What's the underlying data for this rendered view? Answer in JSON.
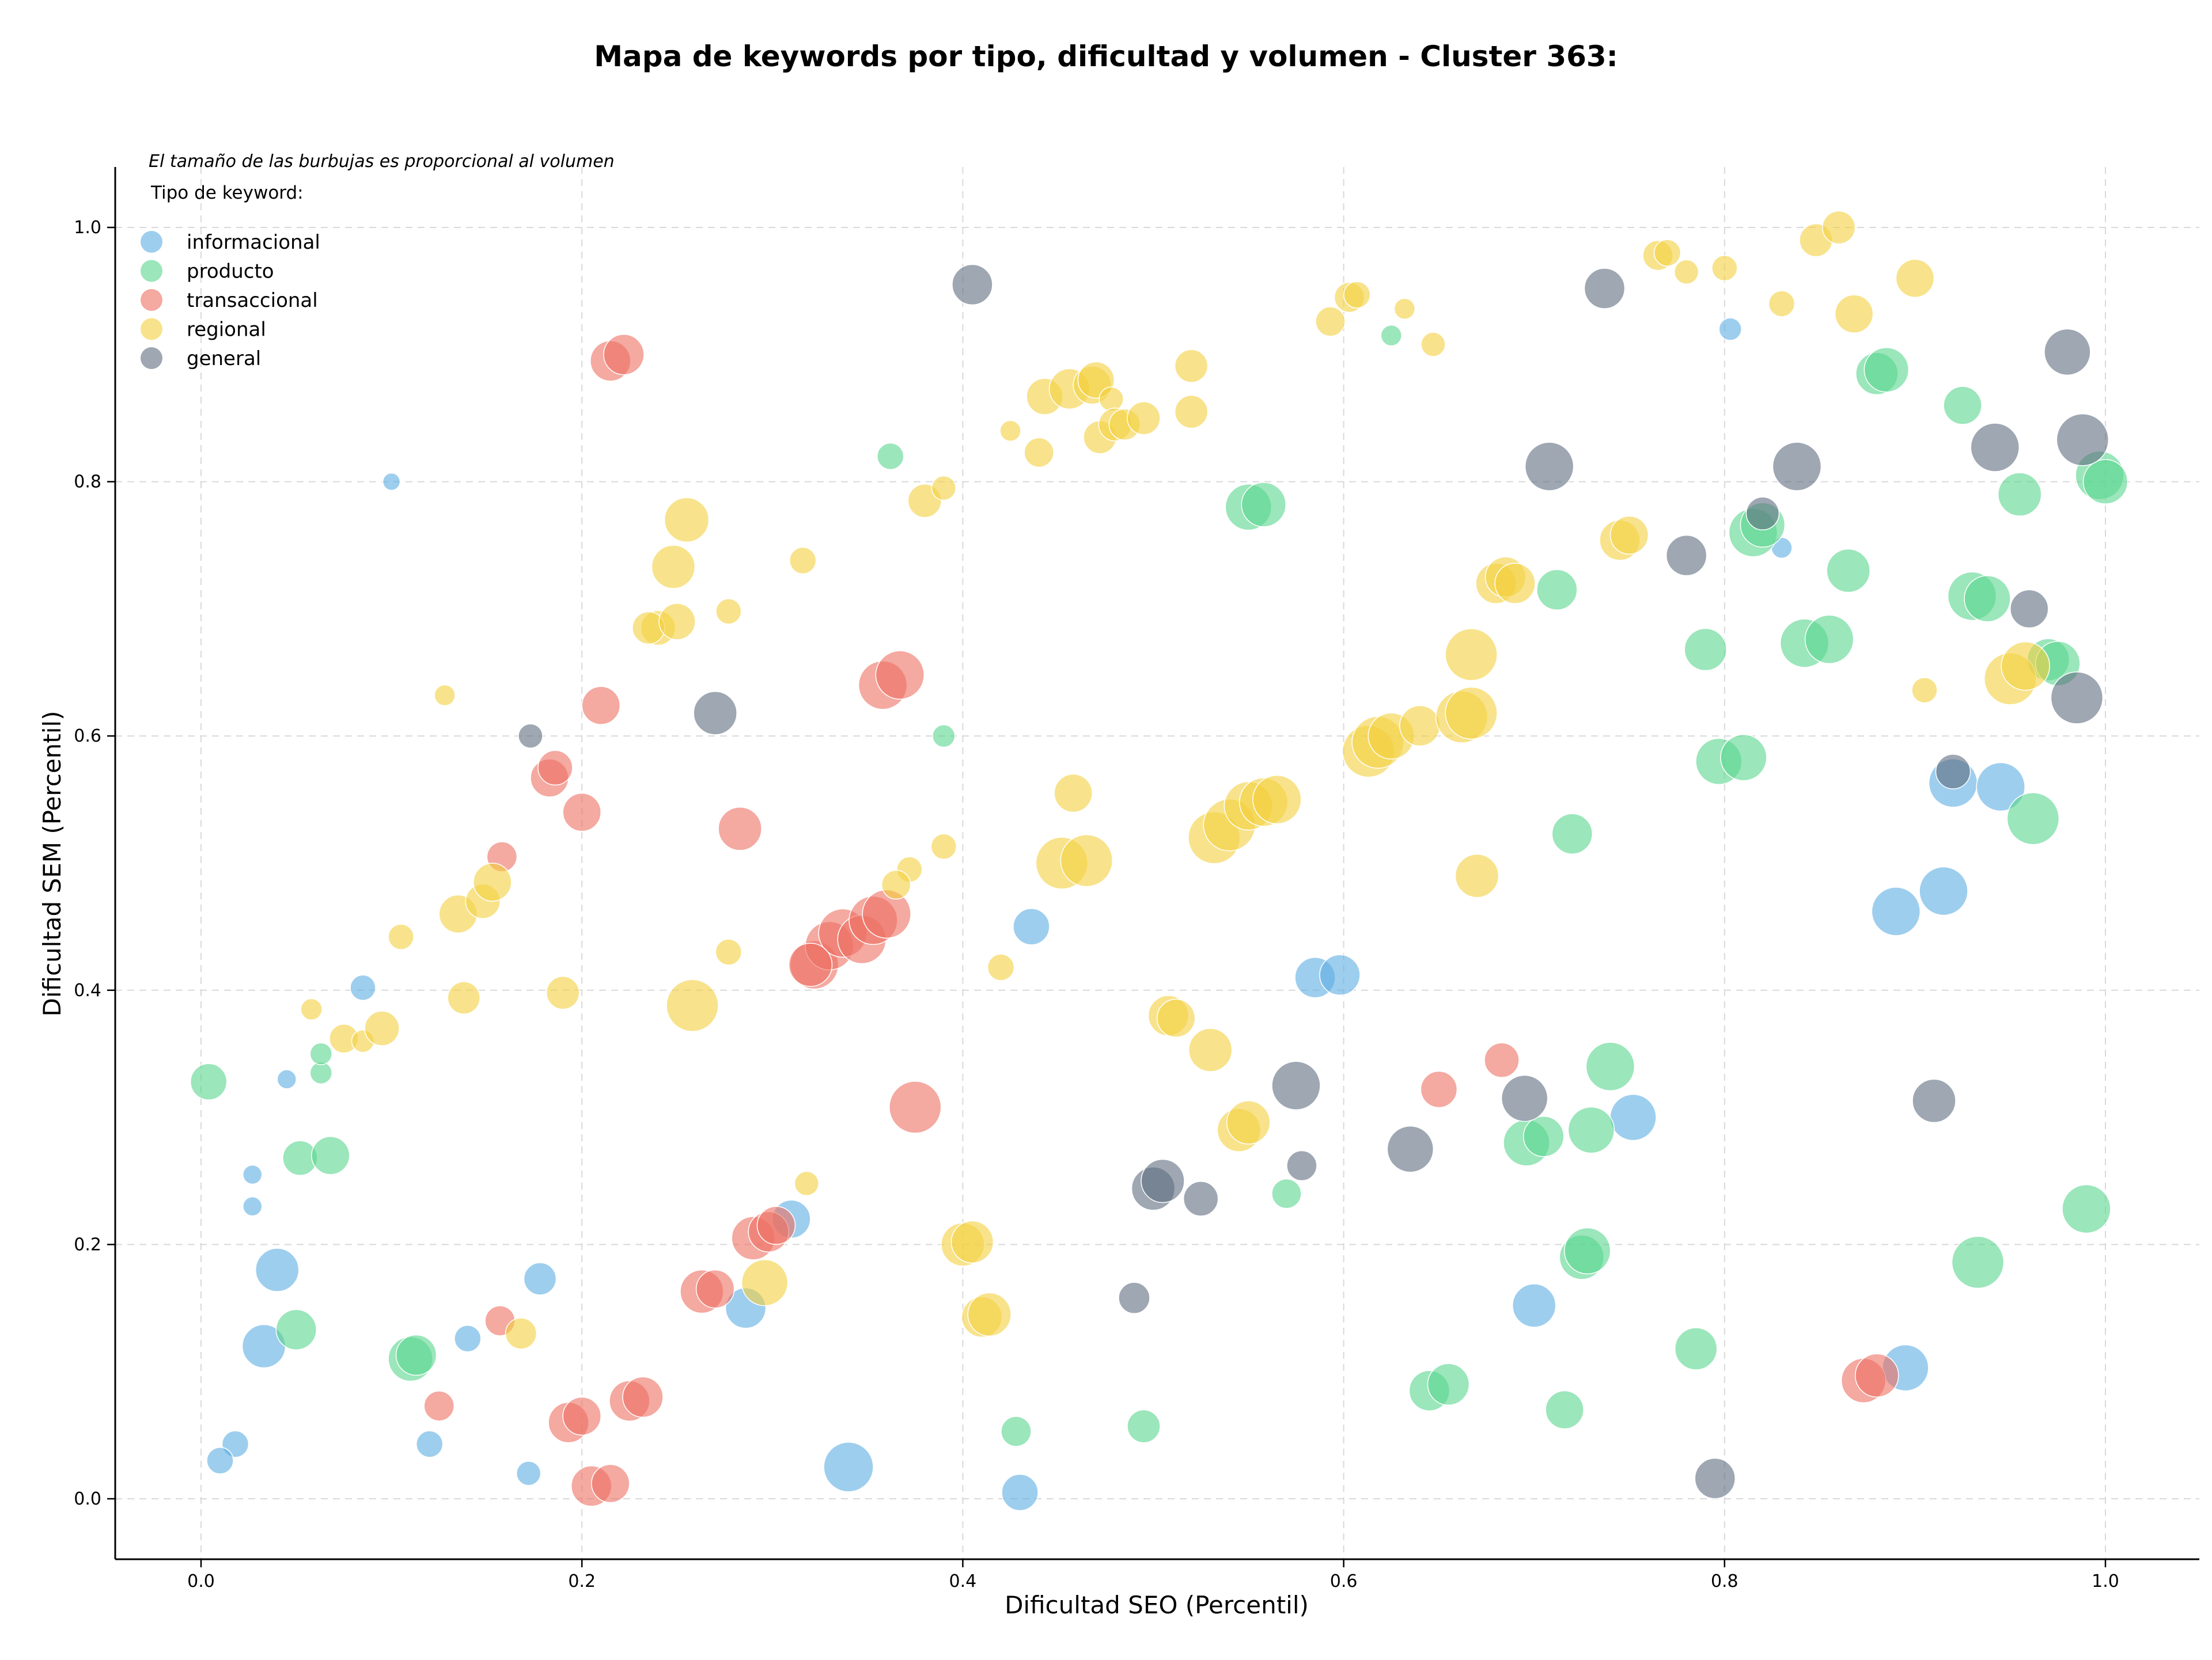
{
  "chart_data": {
    "type": "scatter",
    "title": "Mapa de keywords por tipo, dificultad y volumen - Cluster 363:",
    "xlabel": "Dificultad SEO (Percentil)",
    "ylabel": "Dificultad SEM (Percentil)",
    "xlim": [
      -0.045,
      1.05
    ],
    "ylim": [
      -0.045,
      1.05
    ],
    "xticks": [
      "0.0",
      "0.2",
      "0.4",
      "0.6",
      "0.8",
      "1.0"
    ],
    "yticks": [
      "0.0",
      "0.2",
      "0.4",
      "0.6",
      "0.8",
      "1.0"
    ],
    "grid": true,
    "size_note": "El tamaño de las burbujas es proporcional al volumen",
    "legend": {
      "title": "Tipo de keyword:",
      "placement": "top-left"
    },
    "series": [
      {
        "name": "informacional",
        "color": "#5DADE2",
        "points": [
          [
            0.1,
            0.8,
            30
          ],
          [
            0.045,
            0.33,
            33
          ],
          [
            0.027,
            0.255,
            33
          ],
          [
            0.027,
            0.23,
            33
          ],
          [
            0.085,
            0.402,
            44
          ],
          [
            0.04,
            0.18,
            75
          ],
          [
            0.033,
            0.12,
            75
          ],
          [
            0.018,
            0.043,
            46
          ],
          [
            0.01,
            0.03,
            46
          ],
          [
            0.12,
            0.043,
            46
          ],
          [
            0.14,
            0.126,
            46
          ],
          [
            0.178,
            0.173,
            56
          ],
          [
            0.172,
            0.02,
            42
          ],
          [
            0.31,
            0.22,
            66
          ],
          [
            0.286,
            0.15,
            70
          ],
          [
            0.34,
            0.025,
            86
          ],
          [
            0.43,
            0.005,
            63
          ],
          [
            0.436,
            0.45,
            63
          ],
          [
            0.585,
            0.41,
            70
          ],
          [
            0.598,
            0.412,
            70
          ],
          [
            0.7,
            0.152,
            75
          ],
          [
            0.752,
            0.3,
            80
          ],
          [
            0.803,
            0.92,
            39
          ],
          [
            0.83,
            0.748,
            36
          ],
          [
            0.89,
            0.462,
            84
          ],
          [
            0.915,
            0.478,
            84
          ],
          [
            0.92,
            0.563,
            84
          ],
          [
            0.945,
            0.56,
            84
          ],
          [
            0.895,
            0.103,
            80
          ]
        ]
      },
      {
        "name": "producto",
        "color": "#58D68D",
        "points": [
          [
            0.004,
            0.328,
            63
          ],
          [
            0.063,
            0.335,
            38
          ],
          [
            0.063,
            0.35,
            38
          ],
          [
            0.052,
            0.268,
            60
          ],
          [
            0.068,
            0.27,
            66
          ],
          [
            0.05,
            0.133,
            70
          ],
          [
            0.11,
            0.11,
            77
          ],
          [
            0.113,
            0.113,
            70
          ],
          [
            0.362,
            0.82,
            46
          ],
          [
            0.39,
            0.6,
            39
          ],
          [
            0.428,
            0.053,
            52
          ],
          [
            0.495,
            0.057,
            57
          ],
          [
            0.55,
            0.78,
            80
          ],
          [
            0.558,
            0.782,
            77
          ],
          [
            0.57,
            0.24,
            51
          ],
          [
            0.625,
            0.915,
            36
          ],
          [
            0.645,
            0.085,
            70
          ],
          [
            0.655,
            0.09,
            72
          ],
          [
            0.696,
            0.28,
            80
          ],
          [
            0.705,
            0.285,
            70
          ],
          [
            0.712,
            0.715,
            70
          ],
          [
            0.716,
            0.07,
            66
          ],
          [
            0.72,
            0.523,
            70
          ],
          [
            0.725,
            0.19,
            77
          ],
          [
            0.728,
            0.195,
            80
          ],
          [
            0.73,
            0.29,
            80
          ],
          [
            0.74,
            0.34,
            84
          ],
          [
            0.785,
            0.118,
            73
          ],
          [
            0.79,
            0.668,
            73
          ],
          [
            0.797,
            0.58,
            80
          ],
          [
            0.81,
            0.583,
            80
          ],
          [
            0.815,
            0.76,
            84
          ],
          [
            0.82,
            0.766,
            77
          ],
          [
            0.842,
            0.673,
            84
          ],
          [
            0.855,
            0.676,
            84
          ],
          [
            0.865,
            0.73,
            75
          ],
          [
            0.88,
            0.885,
            73
          ],
          [
            0.885,
            0.888,
            77
          ],
          [
            0.925,
            0.86,
            66
          ],
          [
            0.93,
            0.71,
            84
          ],
          [
            0.938,
            0.708,
            80
          ],
          [
            0.933,
            0.186,
            90
          ],
          [
            0.955,
            0.79,
            75
          ],
          [
            0.962,
            0.535,
            90
          ],
          [
            0.97,
            0.66,
            73
          ],
          [
            0.975,
            0.657,
            77
          ],
          [
            0.99,
            0.228,
            84
          ],
          [
            0.997,
            0.805,
            84
          ],
          [
            1.0,
            0.8,
            77
          ]
        ]
      },
      {
        "name": "transaccional",
        "color": "#EC7063",
        "points": [
          [
            0.215,
            0.895,
            70
          ],
          [
            0.222,
            0.9,
            70
          ],
          [
            0.21,
            0.624,
            66
          ],
          [
            0.183,
            0.567,
            66
          ],
          [
            0.186,
            0.575,
            60
          ],
          [
            0.158,
            0.505,
            52
          ],
          [
            0.2,
            0.54,
            66
          ],
          [
            0.283,
            0.527,
            75
          ],
          [
            0.358,
            0.64,
            84
          ],
          [
            0.367,
            0.648,
            84
          ],
          [
            0.375,
            0.308,
            90
          ],
          [
            0.322,
            0.42,
            84
          ],
          [
            0.33,
            0.435,
            84
          ],
          [
            0.337,
            0.445,
            84
          ],
          [
            0.347,
            0.44,
            84
          ],
          [
            0.353,
            0.455,
            84
          ],
          [
            0.36,
            0.46,
            84
          ],
          [
            0.32,
            0.42,
            75
          ],
          [
            0.29,
            0.205,
            75
          ],
          [
            0.298,
            0.21,
            70
          ],
          [
            0.302,
            0.215,
            66
          ],
          [
            0.263,
            0.163,
            75
          ],
          [
            0.27,
            0.165,
            66
          ],
          [
            0.193,
            0.06,
            70
          ],
          [
            0.2,
            0.065,
            66
          ],
          [
            0.205,
            0.01,
            70
          ],
          [
            0.215,
            0.012,
            66
          ],
          [
            0.225,
            0.077,
            70
          ],
          [
            0.232,
            0.08,
            70
          ],
          [
            0.157,
            0.14,
            52
          ],
          [
            0.125,
            0.073,
            52
          ],
          [
            0.65,
            0.322,
            63
          ],
          [
            0.683,
            0.345,
            60
          ],
          [
            0.873,
            0.093,
            77
          ],
          [
            0.88,
            0.097,
            75
          ]
        ]
      },
      {
        "name": "regional",
        "color": "#F4D03F",
        "points": [
          [
            0.058,
            0.385,
            37
          ],
          [
            0.075,
            0.362,
            50
          ],
          [
            0.085,
            0.36,
            39
          ],
          [
            0.095,
            0.37,
            60
          ],
          [
            0.105,
            0.442,
            44
          ],
          [
            0.128,
            0.632,
            36
          ],
          [
            0.135,
            0.46,
            66
          ],
          [
            0.138,
            0.394,
            56
          ],
          [
            0.148,
            0.47,
            60
          ],
          [
            0.153,
            0.485,
            66
          ],
          [
            0.168,
            0.13,
            54
          ],
          [
            0.19,
            0.398,
            57
          ],
          [
            0.248,
            0.733,
            75
          ],
          [
            0.255,
            0.77,
            77
          ],
          [
            0.24,
            0.685,
            60
          ],
          [
            0.235,
            0.685,
            56
          ],
          [
            0.25,
            0.69,
            63
          ],
          [
            0.258,
            0.388,
            90
          ],
          [
            0.277,
            0.698,
            44
          ],
          [
            0.277,
            0.43,
            45
          ],
          [
            0.296,
            0.17,
            80
          ],
          [
            0.316,
            0.738,
            46
          ],
          [
            0.318,
            0.248,
            42
          ],
          [
            0.372,
            0.495,
            44
          ],
          [
            0.38,
            0.785,
            58
          ],
          [
            0.39,
            0.795,
            42
          ],
          [
            0.39,
            0.513,
            44
          ],
          [
            0.365,
            0.483,
            50
          ],
          [
            0.4,
            0.2,
            75
          ],
          [
            0.405,
            0.202,
            73
          ],
          [
            0.41,
            0.143,
            70
          ],
          [
            0.414,
            0.145,
            75
          ],
          [
            0.42,
            0.418,
            46
          ],
          [
            0.425,
            0.84,
            36
          ],
          [
            0.44,
            0.823,
            51
          ],
          [
            0.443,
            0.867,
            63
          ],
          [
            0.452,
            0.5,
            90
          ],
          [
            0.456,
            0.873,
            70
          ],
          [
            0.458,
            0.555,
            66
          ],
          [
            0.465,
            0.502,
            90
          ],
          [
            0.468,
            0.876,
            66
          ],
          [
            0.47,
            0.88,
            63
          ],
          [
            0.472,
            0.835,
            57
          ],
          [
            0.478,
            0.865,
            42
          ],
          [
            0.48,
            0.845,
            57
          ],
          [
            0.485,
            0.845,
            54
          ],
          [
            0.495,
            0.85,
            57
          ],
          [
            0.508,
            0.38,
            70
          ],
          [
            0.512,
            0.378,
            66
          ],
          [
            0.52,
            0.891,
            57
          ],
          [
            0.52,
            0.855,
            57
          ],
          [
            0.53,
            0.353,
            75
          ],
          [
            0.532,
            0.52,
            90
          ],
          [
            0.54,
            0.53,
            90
          ],
          [
            0.545,
            0.29,
            75
          ],
          [
            0.55,
            0.296,
            75
          ],
          [
            0.55,
            0.545,
            84
          ],
          [
            0.558,
            0.548,
            84
          ],
          [
            0.565,
            0.55,
            84
          ],
          [
            0.593,
            0.926,
            51
          ],
          [
            0.603,
            0.945,
            52
          ],
          [
            0.607,
            0.947,
            46
          ],
          [
            0.613,
            0.588,
            90
          ],
          [
            0.618,
            0.595,
            90
          ],
          [
            0.625,
            0.6,
            80
          ],
          [
            0.632,
            0.936,
            36
          ],
          [
            0.64,
            0.608,
            70
          ],
          [
            0.647,
            0.908,
            42
          ],
          [
            0.662,
            0.615,
            90
          ],
          [
            0.667,
            0.618,
            90
          ],
          [
            0.67,
            0.49,
            75
          ],
          [
            0.667,
            0.664,
            90
          ],
          [
            0.68,
            0.72,
            70
          ],
          [
            0.685,
            0.725,
            70
          ],
          [
            0.69,
            0.72,
            70
          ],
          [
            0.745,
            0.754,
            70
          ],
          [
            0.75,
            0.758,
            66
          ],
          [
            0.765,
            0.978,
            52
          ],
          [
            0.77,
            0.98,
            46
          ],
          [
            0.78,
            0.965,
            42
          ],
          [
            0.8,
            0.968,
            44
          ],
          [
            0.83,
            0.94,
            45
          ],
          [
            0.848,
            0.99,
            57
          ],
          [
            0.86,
            1.0,
            57
          ],
          [
            0.868,
            0.932,
            66
          ],
          [
            0.9,
            0.96,
            66
          ],
          [
            0.905,
            0.636,
            44
          ],
          [
            0.95,
            0.645,
            90
          ],
          [
            0.958,
            0.655,
            84
          ]
        ]
      },
      {
        "name": "general",
        "color": "#5D6D7E",
        "points": [
          [
            0.173,
            0.6,
            42
          ],
          [
            0.27,
            0.618,
            75
          ],
          [
            0.405,
            0.955,
            70
          ],
          [
            0.49,
            0.158,
            54
          ],
          [
            0.5,
            0.244,
            75
          ],
          [
            0.505,
            0.25,
            75
          ],
          [
            0.525,
            0.236,
            60
          ],
          [
            0.578,
            0.262,
            52
          ],
          [
            0.575,
            0.325,
            84
          ],
          [
            0.635,
            0.275,
            80
          ],
          [
            0.695,
            0.315,
            80
          ],
          [
            0.708,
            0.812,
            84
          ],
          [
            0.737,
            0.952,
            70
          ],
          [
            0.78,
            0.742,
            70
          ],
          [
            0.795,
            0.016,
            70
          ],
          [
            0.82,
            0.775,
            57
          ],
          [
            0.838,
            0.812,
            84
          ],
          [
            0.91,
            0.313,
            75
          ],
          [
            0.92,
            0.572,
            60
          ],
          [
            0.942,
            0.827,
            84
          ],
          [
            0.96,
            0.7,
            66
          ],
          [
            0.98,
            0.902,
            80
          ],
          [
            0.985,
            0.63,
            90
          ],
          [
            0.988,
            0.833,
            90
          ]
        ]
      }
    ]
  }
}
